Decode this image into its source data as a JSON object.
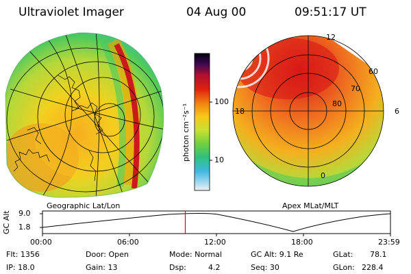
{
  "header": {
    "instrument": "Ultraviolet Imager",
    "date": "04 Aug 00",
    "time": "09:51:17 UT"
  },
  "left_panel": {
    "label": "Geographic Lat/Lon"
  },
  "right_panel": {
    "label": "Apex MLat/MLT",
    "lat_labels": [
      "60",
      "70",
      "80"
    ],
    "mlt_labels": [
      "12",
      "18",
      "6",
      "0"
    ]
  },
  "colorbar": {
    "unit_label": "photon cm⁻²s⁻¹",
    "ticks": [
      "100",
      "10"
    ],
    "scale": "log"
  },
  "altitude_plot": {
    "ylabel": "GC Alt",
    "y_ticks": [
      "9.0",
      "1.8"
    ],
    "x_ticks": [
      "00:00",
      "06:00",
      "12:00",
      "18:00",
      "23:59"
    ],
    "current_time_marker_hours": 9.85,
    "marker_color": "#cc0000"
  },
  "info": {
    "row1": {
      "flt": "Flt: 1356",
      "door": "Door: Open",
      "mode": "Mode: Normal",
      "gcalt": "GC Alt: 9.1 Re",
      "glat_label": "GLat:",
      "glat_value": "78.1"
    },
    "row2": {
      "ip": "IP: 18.0",
      "gain": "Gain: 13",
      "dsp_label": "Dsp:",
      "dsp_value": "4.2",
      "seq": "Seq: 30",
      "glon_label": "GLon:",
      "glon_value": "228.4"
    }
  }
}
